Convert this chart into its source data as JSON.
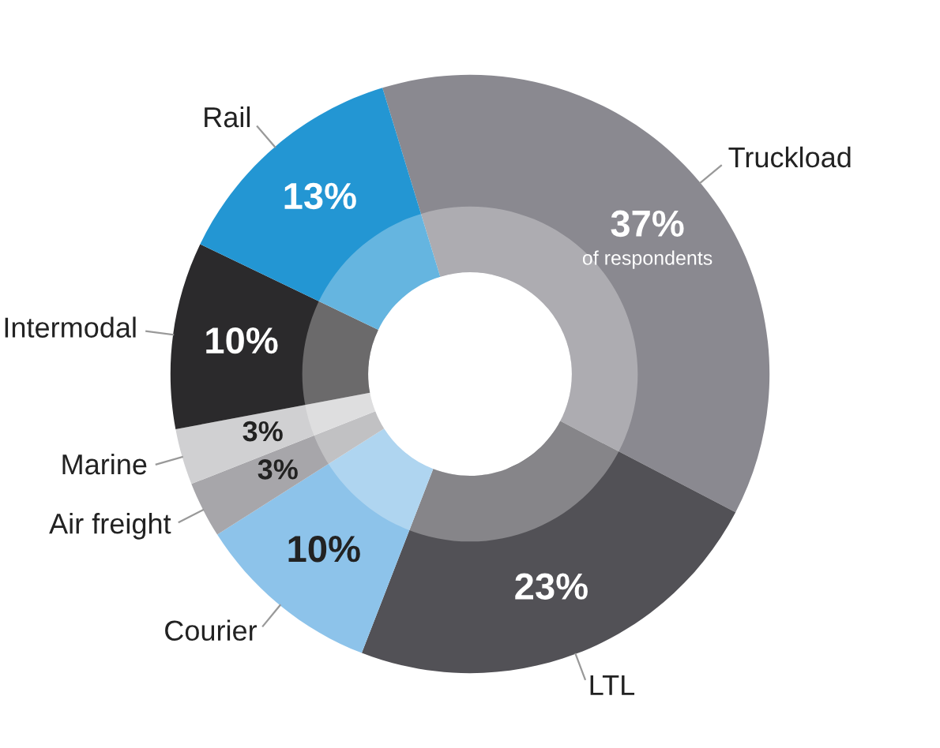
{
  "chart_data": {
    "type": "donut",
    "categories": [
      "Truckload",
      "LTL",
      "Courier",
      "Air freight",
      "Marine",
      "Intermodal",
      "Rail"
    ],
    "values": [
      37,
      23,
      10,
      3,
      3,
      10,
      13
    ],
    "value_labels": [
      "37%",
      "23%",
      "10%",
      "3%",
      "3%",
      "10%",
      "13%"
    ],
    "colors": [
      "#8a8990",
      "#525156",
      "#8dc3ea",
      "#a7a6aa",
      "#d0d0d2",
      "#2b2a2c",
      "#2396d3"
    ],
    "annotations": [
      {
        "text": "of respondents",
        "x": "Truckload"
      }
    ],
    "legend": false
  }
}
